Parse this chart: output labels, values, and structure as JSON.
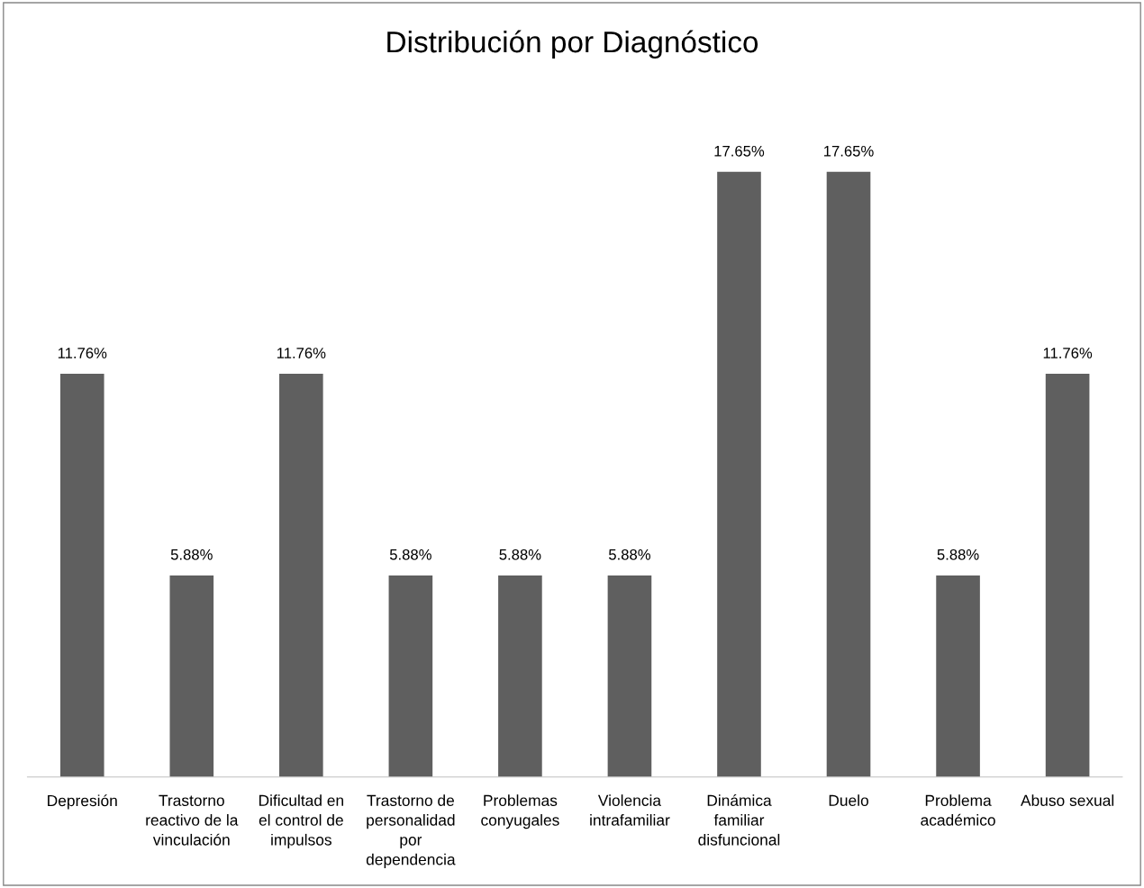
{
  "chart_data": {
    "type": "bar",
    "title": "Distribución por Diagnóstico",
    "categories": [
      "Depresión",
      "Trastorno\nreactivo de la\nvinculación",
      "Dificultad en\nel control de\nimpulsos",
      "Trastorno de\npersonalidad\npor\ndependencia",
      "Problemas\nconyugales",
      "Violencia\nintrafamiliar",
      "Dinámica\nfamiliar\ndisfuncional",
      "Duelo",
      "Problema\nacadémico",
      "Abuso sexual"
    ],
    "values": [
      11.76,
      5.88,
      11.76,
      5.88,
      5.88,
      5.88,
      17.65,
      17.65,
      5.88,
      11.76
    ],
    "value_labels": [
      "11.76%",
      "5.88%",
      "11.76%",
      "5.88%",
      "5.88%",
      "5.88%",
      "17.65%",
      "17.65%",
      "5.88%",
      "11.76%"
    ],
    "color": "#5f5f5f"
  }
}
